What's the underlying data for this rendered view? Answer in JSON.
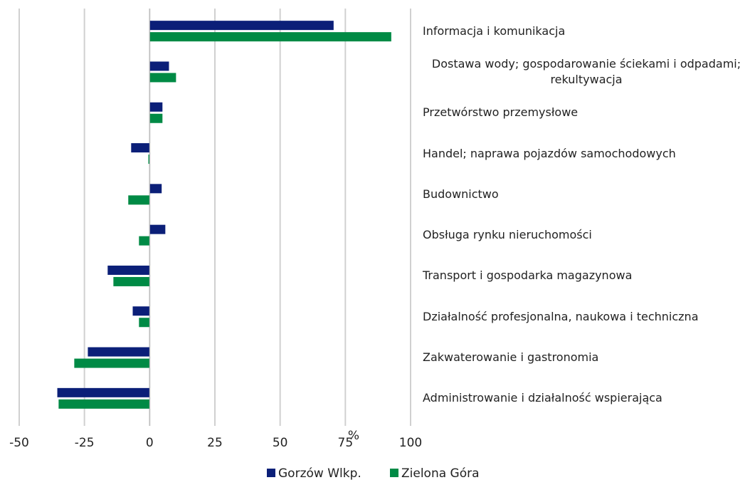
{
  "chart_data": {
    "type": "hbar",
    "categories": [
      "Informacja i komunikacja",
      "Dostawa wody; gospodarowanie ściekami i odpadami; rekultywacja",
      "Przetwórstwo przemysłowe",
      "Handel; naprawa pojazdów samochodowych",
      "Budownictwo",
      "Obsługa rynku nieruchomości",
      "Transport i gospodarka magazynowa",
      "Działalność profesjonalna, naukowa i techniczna",
      "Zakwaterowanie i gastronomia",
      "Administrowanie i działalność wspierająca"
    ],
    "series": [
      {
        "name": "Gorzów Wlkp.",
        "color": "#0b1f78",
        "values": [
          70.5,
          7.4,
          4.9,
          -7.1,
          4.6,
          6.0,
          -16.1,
          -6.5,
          -23.7,
          -35.4
        ]
      },
      {
        "name": "Zielona Góra",
        "color": "#008a45",
        "values": [
          92.6,
          10.1,
          4.9,
          -0.5,
          -8.2,
          -4.1,
          -13.9,
          -4.1,
          -28.9,
          -34.9
        ]
      }
    ],
    "x_label": "%",
    "xlim": [
      -50,
      100
    ],
    "xticks": [
      -50,
      -25,
      0,
      25,
      50,
      75,
      100
    ],
    "grid": true,
    "legend": "bottom"
  }
}
